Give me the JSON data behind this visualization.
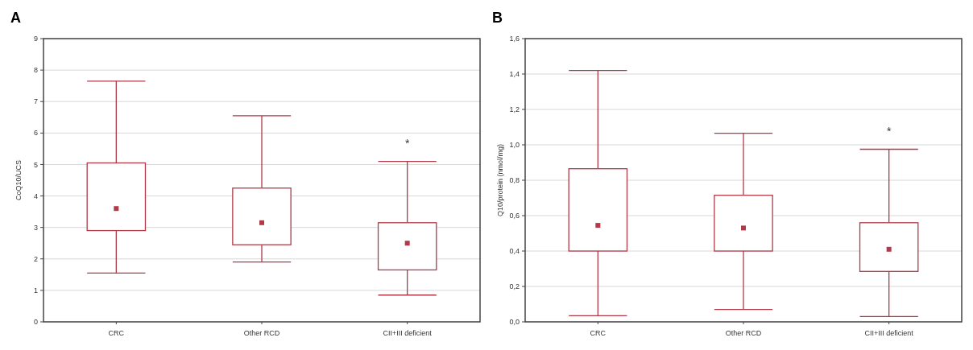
{
  "chart_data": [
    {
      "type": "box",
      "title": "A",
      "ylabel": "CoQ10/UCS",
      "categories": [
        "CRC",
        "Other RCD",
        "CII+III deficient"
      ],
      "color": "#b03a48",
      "grid": "y",
      "ylim": [
        0,
        9
      ],
      "yticks": [
        0,
        1,
        2,
        3,
        4,
        5,
        6,
        7,
        8,
        9
      ],
      "boxes": [
        {
          "low": 1.55,
          "q1": 2.9,
          "median": 3.6,
          "q3": 5.05,
          "high": 7.65
        },
        {
          "low": 1.9,
          "q1": 2.45,
          "median": 3.15,
          "q3": 4.25,
          "high": 6.55
        },
        {
          "low": 0.85,
          "q1": 1.65,
          "median": 2.5,
          "q3": 3.15,
          "high": 5.1
        }
      ],
      "annotations": [
        "*"
      ]
    },
    {
      "type": "box",
      "title": "B",
      "ylabel": "Q10/protein (nmol/mg)",
      "categories": [
        "CRC",
        "Other RCD",
        "CII+III deficient"
      ],
      "color": "#b03a48",
      "grid": "y",
      "ylim": [
        0,
        1.6
      ],
      "yticks": [
        {
          "value": 0,
          "label": "0,0"
        },
        {
          "value": 0.2,
          "label": "0,2"
        },
        {
          "value": 0.4,
          "label": "0,4"
        },
        {
          "value": 0.6,
          "label": "0,6"
        },
        {
          "value": 0.8,
          "label": "0,8"
        },
        {
          "value": 1,
          "label": "1,0"
        },
        {
          "value": 1.2,
          "label": "1,2"
        },
        {
          "value": 1.4,
          "label": "1,4"
        },
        {
          "value": 1.6,
          "label": "1,6"
        }
      ],
      "boxes": [
        {
          "low": 0.035,
          "q1": 0.4,
          "median": 0.545,
          "q3": 0.865,
          "high": 1.42
        },
        {
          "low": 0.07,
          "q1": 0.4,
          "median": 0.53,
          "q3": 0.715,
          "high": 1.065
        },
        {
          "low": 0.03,
          "q1": 0.285,
          "median": 0.41,
          "q3": 0.56,
          "high": 0.975
        }
      ],
      "annotations": [
        "*"
      ]
    }
  ]
}
